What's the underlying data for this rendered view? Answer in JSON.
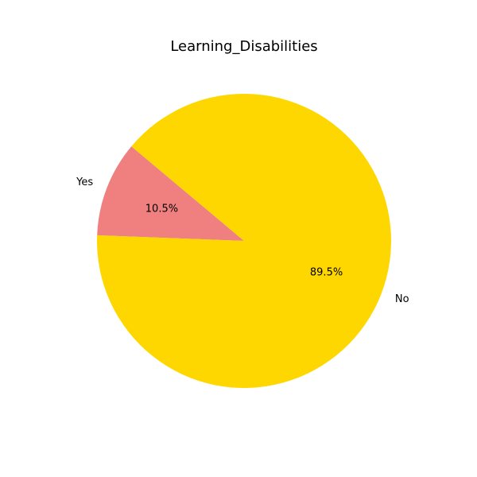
{
  "chart_data": {
    "type": "pie",
    "title": "Learning_Disabilities",
    "slices": [
      {
        "label": "Yes",
        "value": 10.5,
        "pct_label": "10.5%",
        "color": "#f08080"
      },
      {
        "label": "No",
        "value": 89.5,
        "pct_label": "89.5%",
        "color": "#ffd700"
      }
    ],
    "start_angle_deg": 140,
    "direction": "counterclockwise"
  }
}
